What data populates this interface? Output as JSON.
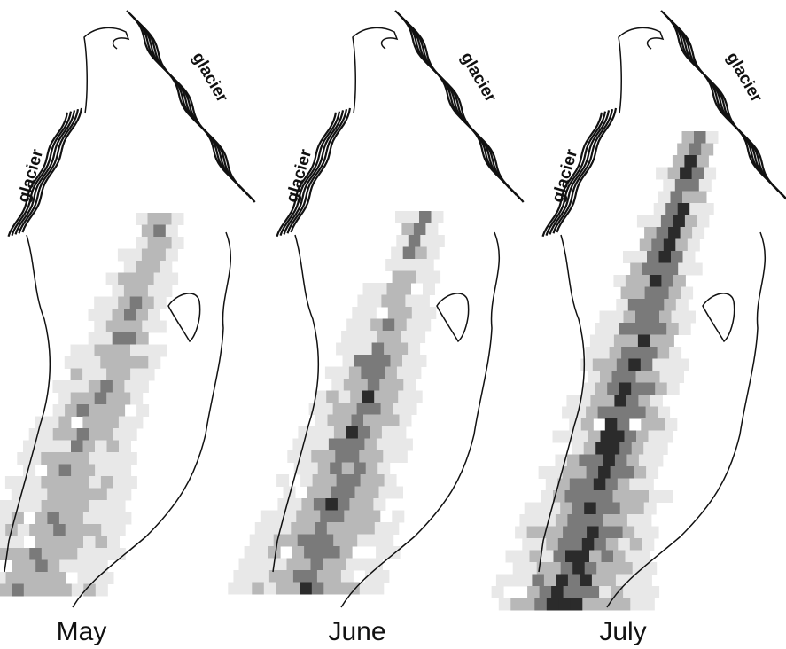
{
  "panels": [
    {
      "label": "May",
      "glacier_labels": [
        "glacier",
        "glacier"
      ]
    },
    {
      "label": "June",
      "glacier_labels": [
        "glacier",
        "glacier"
      ]
    },
    {
      "label": "July",
      "glacier_labels": [
        "glacier",
        "glacier"
      ]
    }
  ]
}
